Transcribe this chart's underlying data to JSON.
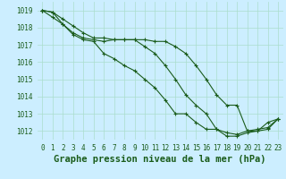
{
  "hours": [
    0,
    1,
    2,
    3,
    4,
    5,
    6,
    7,
    8,
    9,
    10,
    11,
    12,
    13,
    14,
    15,
    16,
    17,
    18,
    19,
    20,
    21,
    22,
    23
  ],
  "line_actual": [
    1019.0,
    1018.9,
    1018.2,
    1017.7,
    1017.4,
    1017.3,
    1017.2,
    1017.3,
    1017.3,
    1017.3,
    1016.9,
    1016.5,
    1015.8,
    1015.0,
    1014.1,
    1013.5,
    1013.0,
    1012.1,
    1011.9,
    1011.8,
    1012.0,
    1012.1,
    1012.2,
    1012.7
  ],
  "line_max": [
    1019.0,
    1018.9,
    1018.5,
    1018.1,
    1017.7,
    1017.4,
    1017.4,
    1017.3,
    1017.3,
    1017.3,
    1017.3,
    1017.2,
    1017.2,
    1016.9,
    1016.5,
    1015.8,
    1015.0,
    1014.1,
    1013.5,
    1013.5,
    1012.0,
    1012.0,
    1012.5,
    1012.7
  ],
  "line_min": [
    1019.0,
    1018.6,
    1018.2,
    1017.6,
    1017.3,
    1017.2,
    1016.5,
    1016.2,
    1015.8,
    1015.5,
    1015.0,
    1014.5,
    1013.8,
    1013.0,
    1013.0,
    1012.5,
    1012.1,
    1012.1,
    1011.7,
    1011.7,
    1011.9,
    1012.0,
    1012.1,
    1012.7
  ],
  "ylim_min": 1011.5,
  "ylim_max": 1019.5,
  "yticks": [
    1012,
    1013,
    1014,
    1015,
    1016,
    1017,
    1018,
    1019
  ],
  "bg_color": "#cceeff",
  "grid_color": "#aaddcc",
  "line_color": "#1a5c1a",
  "xlabel": "Graphe pression niveau de la mer (hPa)",
  "tick_fontsize": 5.5,
  "label_fontsize": 7.5
}
